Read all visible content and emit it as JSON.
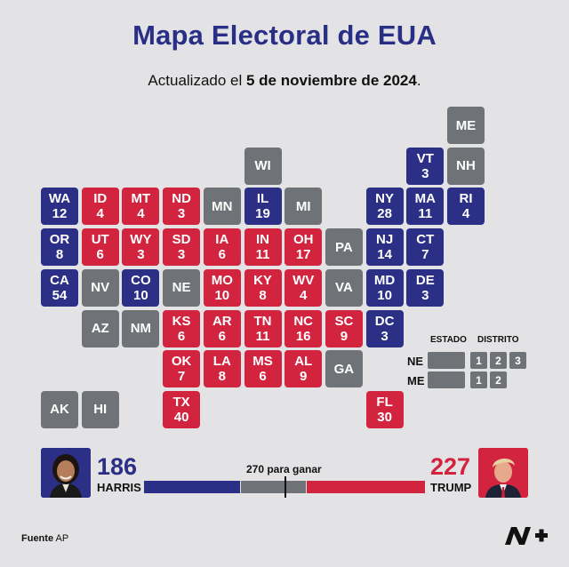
{
  "title": "Mapa Electoral de EUA",
  "subtitle_prefix": "Actualizado el",
  "subtitle_date": "5 de noviembre de 2024",
  "subtitle_suffix": ".",
  "colors": {
    "democrat": "#2b2f86",
    "republican": "#d2233f",
    "undecided": "#6f7276"
  },
  "states": [
    {
      "abbr": "ME",
      "ev": "",
      "party": "U"
    },
    {
      "abbr": "WI",
      "ev": "",
      "party": "U"
    },
    {
      "abbr": "VT",
      "ev": "3",
      "party": "D"
    },
    {
      "abbr": "NH",
      "ev": "",
      "party": "U"
    },
    {
      "abbr": "WA",
      "ev": "12",
      "party": "D"
    },
    {
      "abbr": "ID",
      "ev": "4",
      "party": "R"
    },
    {
      "abbr": "MT",
      "ev": "4",
      "party": "R"
    },
    {
      "abbr": "ND",
      "ev": "3",
      "party": "R"
    },
    {
      "abbr": "MN",
      "ev": "",
      "party": "U"
    },
    {
      "abbr": "IL",
      "ev": "19",
      "party": "D"
    },
    {
      "abbr": "MI",
      "ev": "",
      "party": "U"
    },
    {
      "abbr": "NY",
      "ev": "28",
      "party": "D"
    },
    {
      "abbr": "MA",
      "ev": "11",
      "party": "D"
    },
    {
      "abbr": "RI",
      "ev": "4",
      "party": "D"
    },
    {
      "abbr": "OR",
      "ev": "8",
      "party": "D"
    },
    {
      "abbr": "UT",
      "ev": "6",
      "party": "R"
    },
    {
      "abbr": "WY",
      "ev": "3",
      "party": "R"
    },
    {
      "abbr": "SD",
      "ev": "3",
      "party": "R"
    },
    {
      "abbr": "IA",
      "ev": "6",
      "party": "R"
    },
    {
      "abbr": "IN",
      "ev": "11",
      "party": "R"
    },
    {
      "abbr": "OH",
      "ev": "17",
      "party": "R"
    },
    {
      "abbr": "PA",
      "ev": "",
      "party": "U"
    },
    {
      "abbr": "NJ",
      "ev": "14",
      "party": "D"
    },
    {
      "abbr": "CT",
      "ev": "7",
      "party": "D"
    },
    {
      "abbr": "CA",
      "ev": "54",
      "party": "D"
    },
    {
      "abbr": "NV",
      "ev": "",
      "party": "U"
    },
    {
      "abbr": "CO",
      "ev": "10",
      "party": "D"
    },
    {
      "abbr": "NE",
      "ev": "",
      "party": "U"
    },
    {
      "abbr": "MO",
      "ev": "10",
      "party": "R"
    },
    {
      "abbr": "KY",
      "ev": "8",
      "party": "R"
    },
    {
      "abbr": "WV",
      "ev": "4",
      "party": "R"
    },
    {
      "abbr": "VA",
      "ev": "",
      "party": "U"
    },
    {
      "abbr": "MD",
      "ev": "10",
      "party": "D"
    },
    {
      "abbr": "DE",
      "ev": "3",
      "party": "D"
    },
    {
      "abbr": "AZ",
      "ev": "",
      "party": "U"
    },
    {
      "abbr": "NM",
      "ev": "",
      "party": "U"
    },
    {
      "abbr": "KS",
      "ev": "6",
      "party": "R"
    },
    {
      "abbr": "AR",
      "ev": "6",
      "party": "R"
    },
    {
      "abbr": "TN",
      "ev": "11",
      "party": "R"
    },
    {
      "abbr": "NC",
      "ev": "16",
      "party": "R"
    },
    {
      "abbr": "SC",
      "ev": "9",
      "party": "R"
    },
    {
      "abbr": "DC",
      "ev": "3",
      "party": "D"
    },
    {
      "abbr": "OK",
      "ev": "7",
      "party": "R"
    },
    {
      "abbr": "LA",
      "ev": "8",
      "party": "R"
    },
    {
      "abbr": "MS",
      "ev": "6",
      "party": "R"
    },
    {
      "abbr": "AL",
      "ev": "9",
      "party": "R"
    },
    {
      "abbr": "GA",
      "ev": "",
      "party": "U"
    },
    {
      "abbr": "AK",
      "ev": "",
      "party": "U"
    },
    {
      "abbr": "HI",
      "ev": "",
      "party": "U"
    },
    {
      "abbr": "TX",
      "ev": "40",
      "party": "R"
    },
    {
      "abbr": "FL",
      "ev": "30",
      "party": "R"
    }
  ],
  "legend": {
    "estado_label": "ESTADO",
    "distrito_label": "DISTRITO",
    "ne_label": "NE",
    "me_label": "ME",
    "ne_districts": [
      "1",
      "2",
      "3"
    ],
    "me_districts": [
      "1",
      "2"
    ]
  },
  "harris": {
    "count": "186",
    "name": "HARRIS"
  },
  "trump": {
    "count": "227",
    "name": "TRUMP"
  },
  "goal_label": "270 para ganar",
  "source_label": "Fuente",
  "source_value": "AP"
}
